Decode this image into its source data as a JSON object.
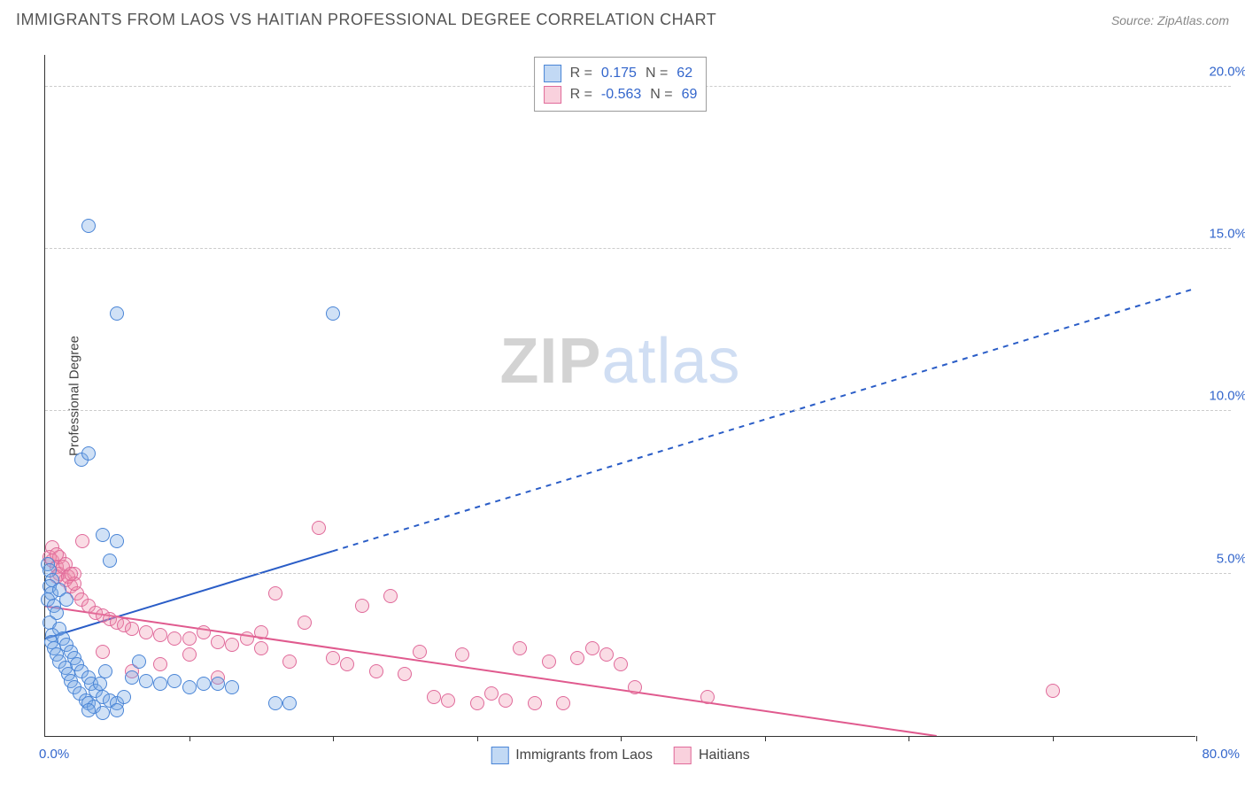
{
  "title": "IMMIGRANTS FROM LAOS VS HAITIAN PROFESSIONAL DEGREE CORRELATION CHART",
  "source": "Source: ZipAtlas.com",
  "watermark": {
    "part1": "ZIP",
    "part2": "atlas"
  },
  "ylabel": "Professional Degree",
  "chart": {
    "type": "scatter",
    "xlim": [
      0,
      80
    ],
    "ylim": [
      0,
      21
    ],
    "x_origin_label": "0.0%",
    "x_max_label": "80.0%",
    "x_tick_positions": [
      0,
      10,
      20,
      30,
      40,
      50,
      60,
      70,
      80
    ],
    "y_gridlines": [
      {
        "y": 5.0,
        "label": "5.0%"
      },
      {
        "y": 10.0,
        "label": "10.0%"
      },
      {
        "y": 15.0,
        "label": "15.0%"
      },
      {
        "y": 20.0,
        "label": "20.0%"
      }
    ],
    "background_color": "#ffffff",
    "grid_color": "#cccccc",
    "axis_color": "#333333",
    "tick_label_color": "#3366cc",
    "series": {
      "blue": {
        "label": "Immigrants from Laos",
        "color_fill": "rgba(120,170,230,0.35)",
        "color_stroke": "#4a85d6",
        "marker_size_px": 16,
        "R": "0.175",
        "N": "62",
        "regression": {
          "x0": 0,
          "y0": 3.0,
          "x1": 20,
          "y1": 5.7,
          "x2": 80,
          "y2": 13.8,
          "solid_until_x": 20,
          "line_width": 2,
          "dash": "6 6"
        },
        "points": [
          [
            0.2,
            5.3
          ],
          [
            0.3,
            5.1
          ],
          [
            0.5,
            4.8
          ],
          [
            0.3,
            4.6
          ],
          [
            0.4,
            4.4
          ],
          [
            0.2,
            4.2
          ],
          [
            0.6,
            4.0
          ],
          [
            0.8,
            3.8
          ],
          [
            0.3,
            3.5
          ],
          [
            1.0,
            3.3
          ],
          [
            0.5,
            3.1
          ],
          [
            1.2,
            3.0
          ],
          [
            0.4,
            2.9
          ],
          [
            1.5,
            2.8
          ],
          [
            0.6,
            2.7
          ],
          [
            1.8,
            2.6
          ],
          [
            0.8,
            2.5
          ],
          [
            2.0,
            2.4
          ],
          [
            1.0,
            2.3
          ],
          [
            2.2,
            2.2
          ],
          [
            1.4,
            2.1
          ],
          [
            2.5,
            2.0
          ],
          [
            1.6,
            1.9
          ],
          [
            3.0,
            1.8
          ],
          [
            1.8,
            1.7
          ],
          [
            3.2,
            1.6
          ],
          [
            2.0,
            1.5
          ],
          [
            3.5,
            1.4
          ],
          [
            2.4,
            1.3
          ],
          [
            4.0,
            1.2
          ],
          [
            2.8,
            1.1
          ],
          [
            4.5,
            1.1
          ],
          [
            3.0,
            1.0
          ],
          [
            5.0,
            1.0
          ],
          [
            3.4,
            0.9
          ],
          [
            5.5,
            1.2
          ],
          [
            3.8,
            1.6
          ],
          [
            6.0,
            1.8
          ],
          [
            4.2,
            2.0
          ],
          [
            6.5,
            2.3
          ],
          [
            7.0,
            1.7
          ],
          [
            8.0,
            1.6
          ],
          [
            9.0,
            1.7
          ],
          [
            10.0,
            1.5
          ],
          [
            11.0,
            1.6
          ],
          [
            12.0,
            1.6
          ],
          [
            13.0,
            1.5
          ],
          [
            3.0,
            0.8
          ],
          [
            4.0,
            0.7
          ],
          [
            5.0,
            0.8
          ],
          [
            16.0,
            1.0
          ],
          [
            17.0,
            1.0
          ],
          [
            2.5,
            8.5
          ],
          [
            3.0,
            8.7
          ],
          [
            4.0,
            6.2
          ],
          [
            5.0,
            6.0
          ],
          [
            4.5,
            5.4
          ],
          [
            3.0,
            15.7
          ],
          [
            5.0,
            13.0
          ],
          [
            20.0,
            13.0
          ],
          [
            1.0,
            4.5
          ],
          [
            1.5,
            4.2
          ]
        ]
      },
      "pink": {
        "label": "Haitians",
        "color_fill": "rgba(240,140,170,0.3)",
        "color_stroke": "#e06a9a",
        "marker_size_px": 16,
        "R": "-0.563",
        "N": "69",
        "regression": {
          "x0": 0,
          "y0": 4.0,
          "x1": 62,
          "y1": 0.0,
          "x2": 62,
          "y2": 0.0,
          "solid_until_x": 62,
          "line_width": 2,
          "dash": ""
        },
        "points": [
          [
            0.3,
            5.5
          ],
          [
            0.5,
            5.4
          ],
          [
            0.8,
            5.2
          ],
          [
            1.0,
            5.0
          ],
          [
            1.4,
            4.8
          ],
          [
            1.8,
            4.6
          ],
          [
            2.2,
            4.4
          ],
          [
            2.5,
            4.2
          ],
          [
            3.0,
            4.0
          ],
          [
            3.5,
            3.8
          ],
          [
            4.0,
            3.7
          ],
          [
            4.5,
            3.6
          ],
          [
            5.0,
            3.5
          ],
          [
            5.5,
            3.4
          ],
          [
            6.0,
            3.3
          ],
          [
            7.0,
            3.2
          ],
          [
            8.0,
            3.1
          ],
          [
            9.0,
            3.0
          ],
          [
            10.0,
            3.0
          ],
          [
            11.0,
            3.2
          ],
          [
            12.0,
            2.9
          ],
          [
            13.0,
            2.8
          ],
          [
            14.0,
            3.0
          ],
          [
            15.0,
            2.7
          ],
          [
            16.0,
            4.4
          ],
          [
            17.0,
            2.3
          ],
          [
            18.0,
            3.5
          ],
          [
            19.0,
            6.4
          ],
          [
            20.0,
            2.4
          ],
          [
            21.0,
            2.2
          ],
          [
            22.0,
            4.0
          ],
          [
            23.0,
            2.0
          ],
          [
            24.0,
            4.3
          ],
          [
            25.0,
            1.9
          ],
          [
            26.0,
            2.6
          ],
          [
            27.0,
            1.2
          ],
          [
            28.0,
            1.1
          ],
          [
            29.0,
            2.5
          ],
          [
            30.0,
            1.0
          ],
          [
            31.0,
            1.3
          ],
          [
            32.0,
            1.1
          ],
          [
            33.0,
            2.7
          ],
          [
            34.0,
            1.0
          ],
          [
            35.0,
            2.3
          ],
          [
            36.0,
            1.0
          ],
          [
            37.0,
            2.4
          ],
          [
            38.0,
            2.7
          ],
          [
            39.0,
            2.5
          ],
          [
            40.0,
            2.2
          ],
          [
            41.0,
            1.5
          ],
          [
            0.5,
            5.8
          ],
          [
            0.8,
            4.9
          ],
          [
            2.0,
            5.0
          ],
          [
            2.6,
            6.0
          ],
          [
            4.0,
            2.6
          ],
          [
            6.0,
            2.0
          ],
          [
            8.0,
            2.2
          ],
          [
            10.0,
            2.5
          ],
          [
            12.0,
            1.8
          ],
          [
            15.0,
            3.2
          ],
          [
            46.0,
            1.2
          ],
          [
            70.0,
            1.4
          ],
          [
            1.0,
            5.5
          ],
          [
            1.2,
            5.2
          ],
          [
            1.6,
            4.9
          ],
          [
            2.0,
            4.7
          ],
          [
            0.8,
            5.6
          ],
          [
            1.4,
            5.3
          ],
          [
            1.8,
            5.0
          ]
        ]
      }
    }
  },
  "r_legend_template": {
    "r_prefix": "R =",
    "n_prefix": "N ="
  }
}
